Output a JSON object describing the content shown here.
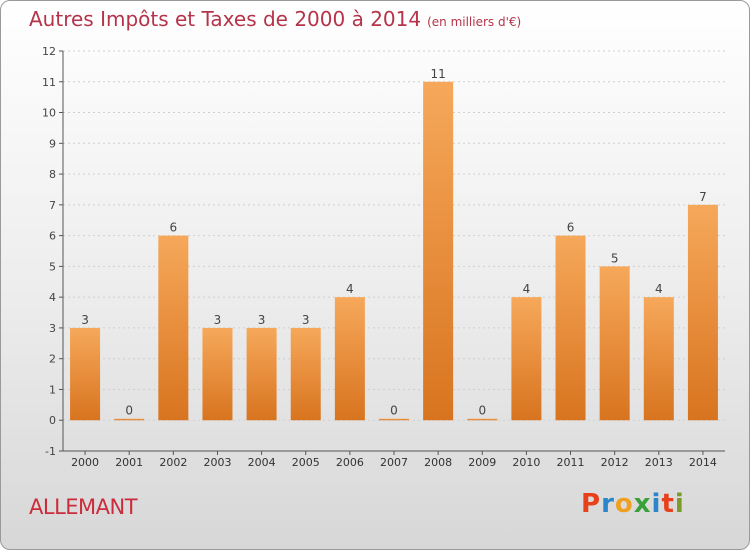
{
  "title": "Autres Impôts et Taxes de 2000 à 2014",
  "subtitle": "(en milliers d'€)",
  "commune": "ALLEMANT",
  "logo": {
    "letters": [
      "P",
      "r",
      "o",
      "x",
      "i",
      "t",
      "i"
    ]
  },
  "colors": {
    "bar_top": "#f6a85a",
    "bar_bottom": "#d8741f",
    "title": "#b5344a",
    "commune": "#cc2b3b",
    "axis": "#555555",
    "grid": "#cfcfcf",
    "logo": [
      "#e8401a",
      "#2a86c8",
      "#f0a020",
      "#3aa03a",
      "#2a86c8",
      "#e8401a",
      "#7a9a2a"
    ]
  },
  "chart_data": {
    "type": "bar",
    "categories": [
      "2000",
      "2001",
      "2002",
      "2003",
      "2004",
      "2005",
      "2006",
      "2007",
      "2008",
      "2009",
      "2010",
      "2011",
      "2012",
      "2013",
      "2014"
    ],
    "values": [
      3,
      0,
      6,
      3,
      3,
      3,
      4,
      0,
      11,
      0,
      4,
      6,
      5,
      4,
      7
    ],
    "data_labels": [
      "3",
      "0",
      "6",
      "3",
      "3",
      "3",
      "4",
      "0",
      "11",
      "0",
      "4",
      "6",
      "5",
      "4",
      "7"
    ],
    "y_ticks": [
      "-1",
      "0",
      "1",
      "2",
      "3",
      "4",
      "5",
      "6",
      "7",
      "8",
      "9",
      "10",
      "11",
      "12"
    ],
    "ylim": [
      -1,
      12
    ],
    "grid": true,
    "legend": "none"
  }
}
